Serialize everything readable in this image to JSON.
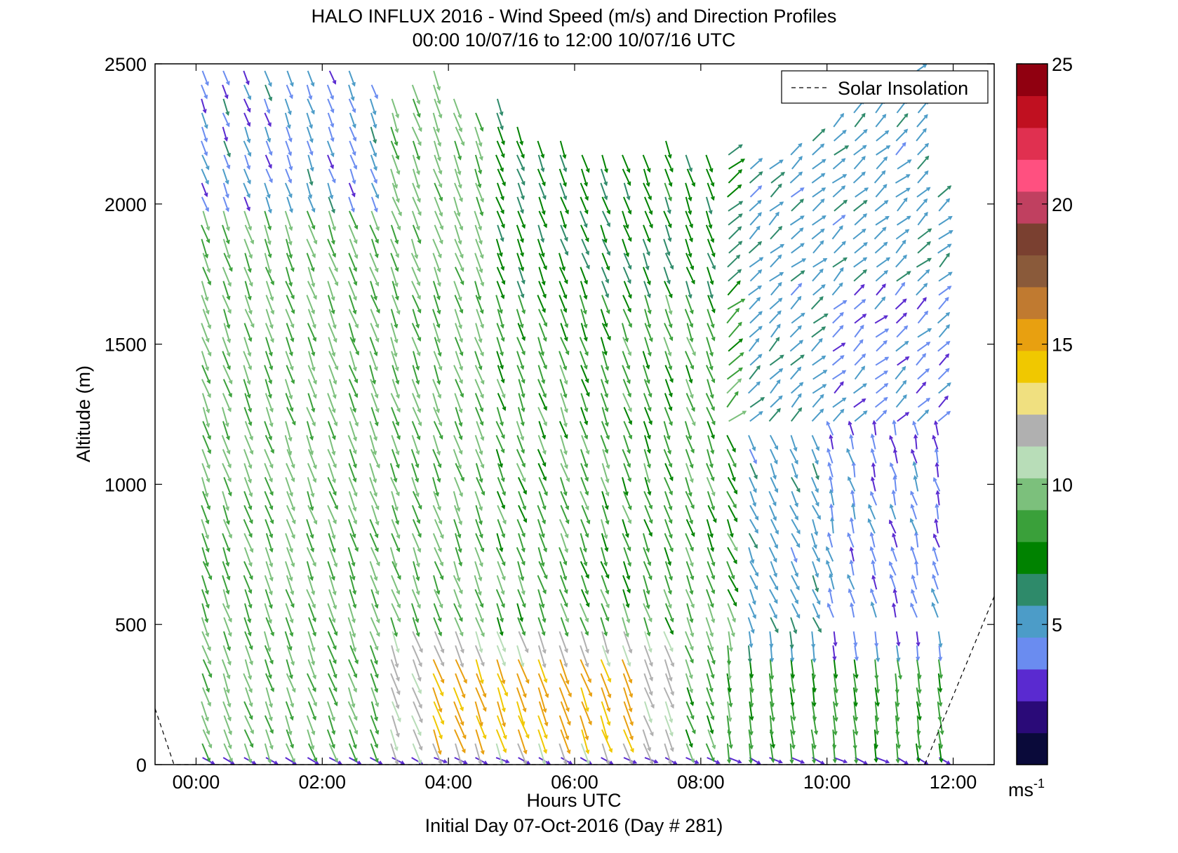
{
  "chart_data": {
    "type": "vector-field",
    "title": "HALO INFLUX 2016 - Wind Speed (m/s) and Direction Profiles",
    "subtitle": "00:00 10/07/16 to 12:00 10/07/16  UTC",
    "xlabel": "Hours UTC",
    "xlabel_sub": "Initial Day 07-Oct-2016 (Day # 281)",
    "ylabel": "Altitude (m)",
    "xlim": [
      -0.65,
      12.65
    ],
    "ylim": [
      0,
      2500
    ],
    "xticks": [
      0,
      2,
      4,
      6,
      8,
      10,
      12
    ],
    "xtick_labels": [
      "00:00",
      "02:00",
      "04:00",
      "06:00",
      "08:00",
      "10:00",
      "12:00"
    ],
    "yticks": [
      0,
      500,
      1000,
      1500,
      2000,
      2500
    ],
    "ytick_labels": [
      "0",
      "500",
      "1000",
      "1500",
      "2000",
      "2500"
    ],
    "colorbar": {
      "range": [
        0,
        25
      ],
      "ticks": [
        5,
        10,
        15,
        20,
        25
      ],
      "tick_labels": [
        "5",
        "10",
        "15",
        "20",
        "25"
      ],
      "unit_label": "ms",
      "unit_exponent": "-1",
      "colors": [
        "#0a0a3a",
        "#2a0a78",
        "#5a2ad0",
        "#6a8cf0",
        "#4c9cc8",
        "#2e8a6a",
        "#008200",
        "#3aa03a",
        "#7cc07c",
        "#b8ddb8",
        "#b0b0b0",
        "#f0e080",
        "#f0c800",
        "#e8a010",
        "#c07a30",
        "#8a5a3a",
        "#7a4030",
        "#c04060",
        "#ff5080",
        "#e03050",
        "#c01020",
        "#900010"
      ]
    },
    "legend": {
      "entries": [
        "Solar Insolation"
      ],
      "placement": "top-right"
    },
    "profile_times": [
      0.1,
      0.43,
      0.77,
      1.1,
      1.43,
      1.77,
      2.1,
      2.43,
      2.77,
      3.1,
      3.43,
      3.77,
      4.1,
      4.43,
      4.77,
      5.1,
      5.43,
      5.77,
      6.1,
      6.43,
      6.77,
      7.1,
      7.43,
      7.77,
      8.1,
      8.43,
      8.77,
      9.1,
      9.43,
      9.77,
      10.1,
      10.43,
      10.77,
      11.1,
      11.43,
      11.77
    ],
    "altitude_step": 50,
    "profile_top": [
      2500,
      2500,
      2500,
      2500,
      2500,
      2500,
      2500,
      2500,
      2450,
      2400,
      2450,
      2500,
      2400,
      2350,
      2400,
      2300,
      2250,
      2250,
      2200,
      2200,
      2200,
      2200,
      2250,
      2200,
      2200,
      2200,
      2150,
      2150,
      2200,
      2250,
      2300,
      2350,
      2400,
      2450,
      2500,
      2050
    ],
    "speed_model": "speed varies with altitude and time, ranging about 1-16 m/s, with a 14-16 m/s jet near 100-400 m between 04:00 and 07:00",
    "solar_insolation": {
      "x": [
        -0.65,
        -0.35,
        11.55,
        12.65
      ],
      "y": [
        200,
        0,
        0,
        600
      ]
    }
  }
}
